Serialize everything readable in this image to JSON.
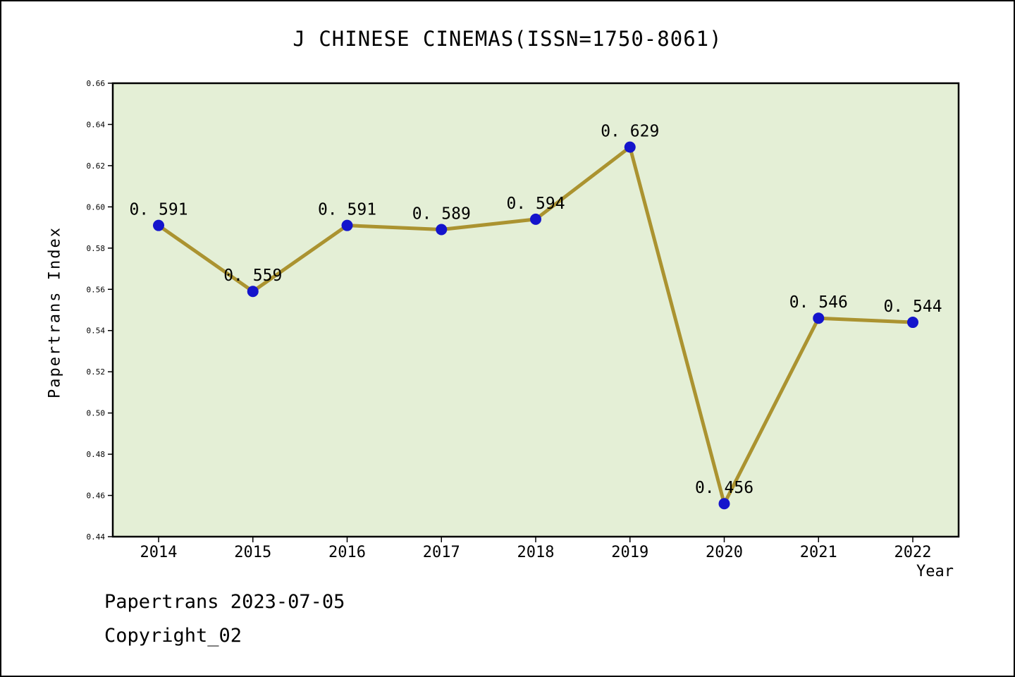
{
  "title": "J CHINESE CINEMAS(ISSN=1750-8061)",
  "footer": {
    "line1": "Papertrans 2023-07-05",
    "line2": "Copyright_02"
  },
  "chart_data": {
    "type": "line",
    "title": "J CHINESE CINEMAS(ISSN=1750-8061)",
    "xlabel": "Year",
    "ylabel": "Papertrans Index",
    "categories": [
      "2014",
      "2015",
      "2016",
      "2017",
      "2018",
      "2019",
      "2020",
      "2021",
      "2022"
    ],
    "values": [
      0.591,
      0.559,
      0.591,
      0.589,
      0.594,
      0.629,
      0.456,
      0.546,
      0.544
    ],
    "point_labels": [
      "0. 591",
      "0. 559",
      "0. 591",
      "0. 589",
      "0. 594",
      "0. 629",
      "0. 456",
      "0. 546",
      "0. 544"
    ],
    "ylim": [
      0.44,
      0.66
    ],
    "ytick_step": 0.02,
    "ytick_labels": [
      "0.44",
      "0.46",
      "0.48",
      "0.50",
      "0.52",
      "0.54",
      "0.56",
      "0.58",
      "0.60",
      "0.62",
      "0.64",
      "0.66"
    ],
    "grid": false,
    "legend": false,
    "colors": {
      "line": "#ab9330",
      "marker": "#1414cc",
      "plot_background": "#e4efd6",
      "axis": "#000000",
      "page_border": "#000000"
    }
  }
}
